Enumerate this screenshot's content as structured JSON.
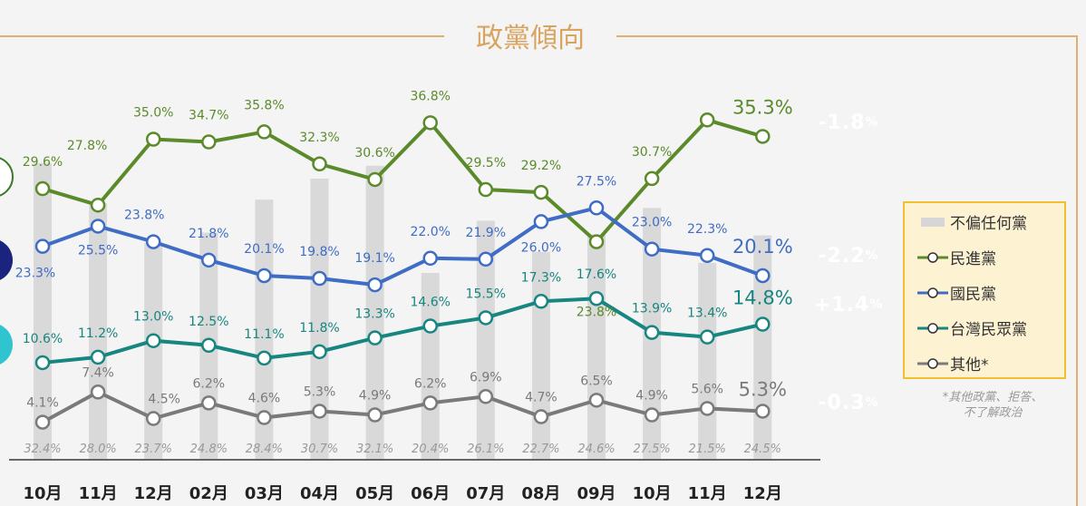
{
  "title": "政黨傾向",
  "chart_data": {
    "type": "line",
    "title": "政黨傾向",
    "categories": [
      "10月",
      "11月",
      "12月",
      "02月",
      "03月",
      "04月",
      "05月",
      "06月",
      "07月",
      "08月",
      "09月",
      "10月",
      "11月",
      "12月"
    ],
    "ylim": [
      0,
      40
    ],
    "grid": false,
    "legend_placement": "right",
    "bars": {
      "name": "不偏任何黨",
      "color": "#d9d9d9",
      "values": [
        32.4,
        28.0,
        23.7,
        24.8,
        28.4,
        30.7,
        32.1,
        20.4,
        26.1,
        22.7,
        24.6,
        27.5,
        21.5,
        24.5
      ],
      "labels": [
        "32.4%",
        "28.0%",
        "23.7%",
        "24.8%",
        "28.4%",
        "30.7%",
        "32.1%",
        "20.4%",
        "26.1%",
        "22.7%",
        "24.6%",
        "27.5%",
        "21.5%",
        "24.5%"
      ]
    },
    "series": [
      {
        "name": "民進黨",
        "color": "#5b8a2b",
        "values": [
          29.6,
          27.8,
          35.0,
          34.7,
          35.8,
          32.3,
          30.6,
          36.8,
          29.5,
          29.2,
          23.8,
          30.7,
          37.1,
          35.3
        ],
        "labels": [
          "29.6%",
          "27.8%",
          "35.0%",
          "34.7%",
          "35.8%",
          "32.3%",
          "30.6%",
          "36.8%",
          "29.5%",
          "29.2%",
          "23.8%",
          "30.7%",
          null,
          "35.3%"
        ],
        "change": "-1.8",
        "badge_color": "#5b8a2b",
        "badge_text_color": "#ffffff"
      },
      {
        "name": "國民黨",
        "color": "#3f6cc4",
        "values": [
          23.3,
          25.5,
          23.8,
          21.8,
          20.1,
          19.8,
          19.1,
          22.0,
          21.9,
          26.0,
          27.5,
          23.0,
          22.3,
          20.1
        ],
        "labels": [
          "23.3%",
          "25.5%",
          "23.8%",
          "21.8%",
          "20.1%",
          "19.8%",
          "19.1%",
          "22.0%",
          "21.9%",
          "26.0%",
          "27.5%",
          "23.0%",
          "22.3%",
          "20.1%"
        ],
        "change": "-2.2",
        "badge_color": "#3b6fc9",
        "badge_text_color": "#ffffff"
      },
      {
        "name": "台灣民眾黨",
        "color": "#178580",
        "values": [
          10.6,
          11.2,
          13.0,
          12.5,
          11.1,
          11.8,
          13.3,
          14.6,
          15.5,
          17.3,
          17.6,
          13.9,
          13.4,
          14.8
        ],
        "labels": [
          "10.6%",
          "11.2%",
          "13.0%",
          "12.5%",
          "11.1%",
          "11.8%",
          "13.3%",
          "14.6%",
          "15.5%",
          "17.3%",
          "17.6%",
          "13.9%",
          "13.4%",
          "14.8%"
        ],
        "change": "+1.4",
        "badge_color": "#17847f",
        "badge_text_color": "#eef542"
      },
      {
        "name": "其他*",
        "color": "#7a7a7a",
        "values": [
          4.1,
          7.4,
          4.5,
          6.2,
          4.6,
          5.3,
          4.9,
          6.2,
          6.9,
          4.7,
          6.5,
          4.9,
          5.6,
          5.3
        ],
        "labels": [
          "4.1%",
          "7.4%",
          "4.5%",
          "6.2%",
          "4.6%",
          "5.3%",
          "4.9%",
          "6.2%",
          "6.9%",
          "4.7%",
          "6.5%",
          "4.9%",
          "5.6%",
          "5.3%"
        ],
        "change": "-0.3",
        "badge_color": "#7a7a7a",
        "badge_text_color": "#ffffff"
      }
    ]
  },
  "percent_sign": "%",
  "footnote_line1": "*其他政黨、拒答、",
  "footnote_line2": "不了解政治",
  "frame_color": "#e0b070"
}
